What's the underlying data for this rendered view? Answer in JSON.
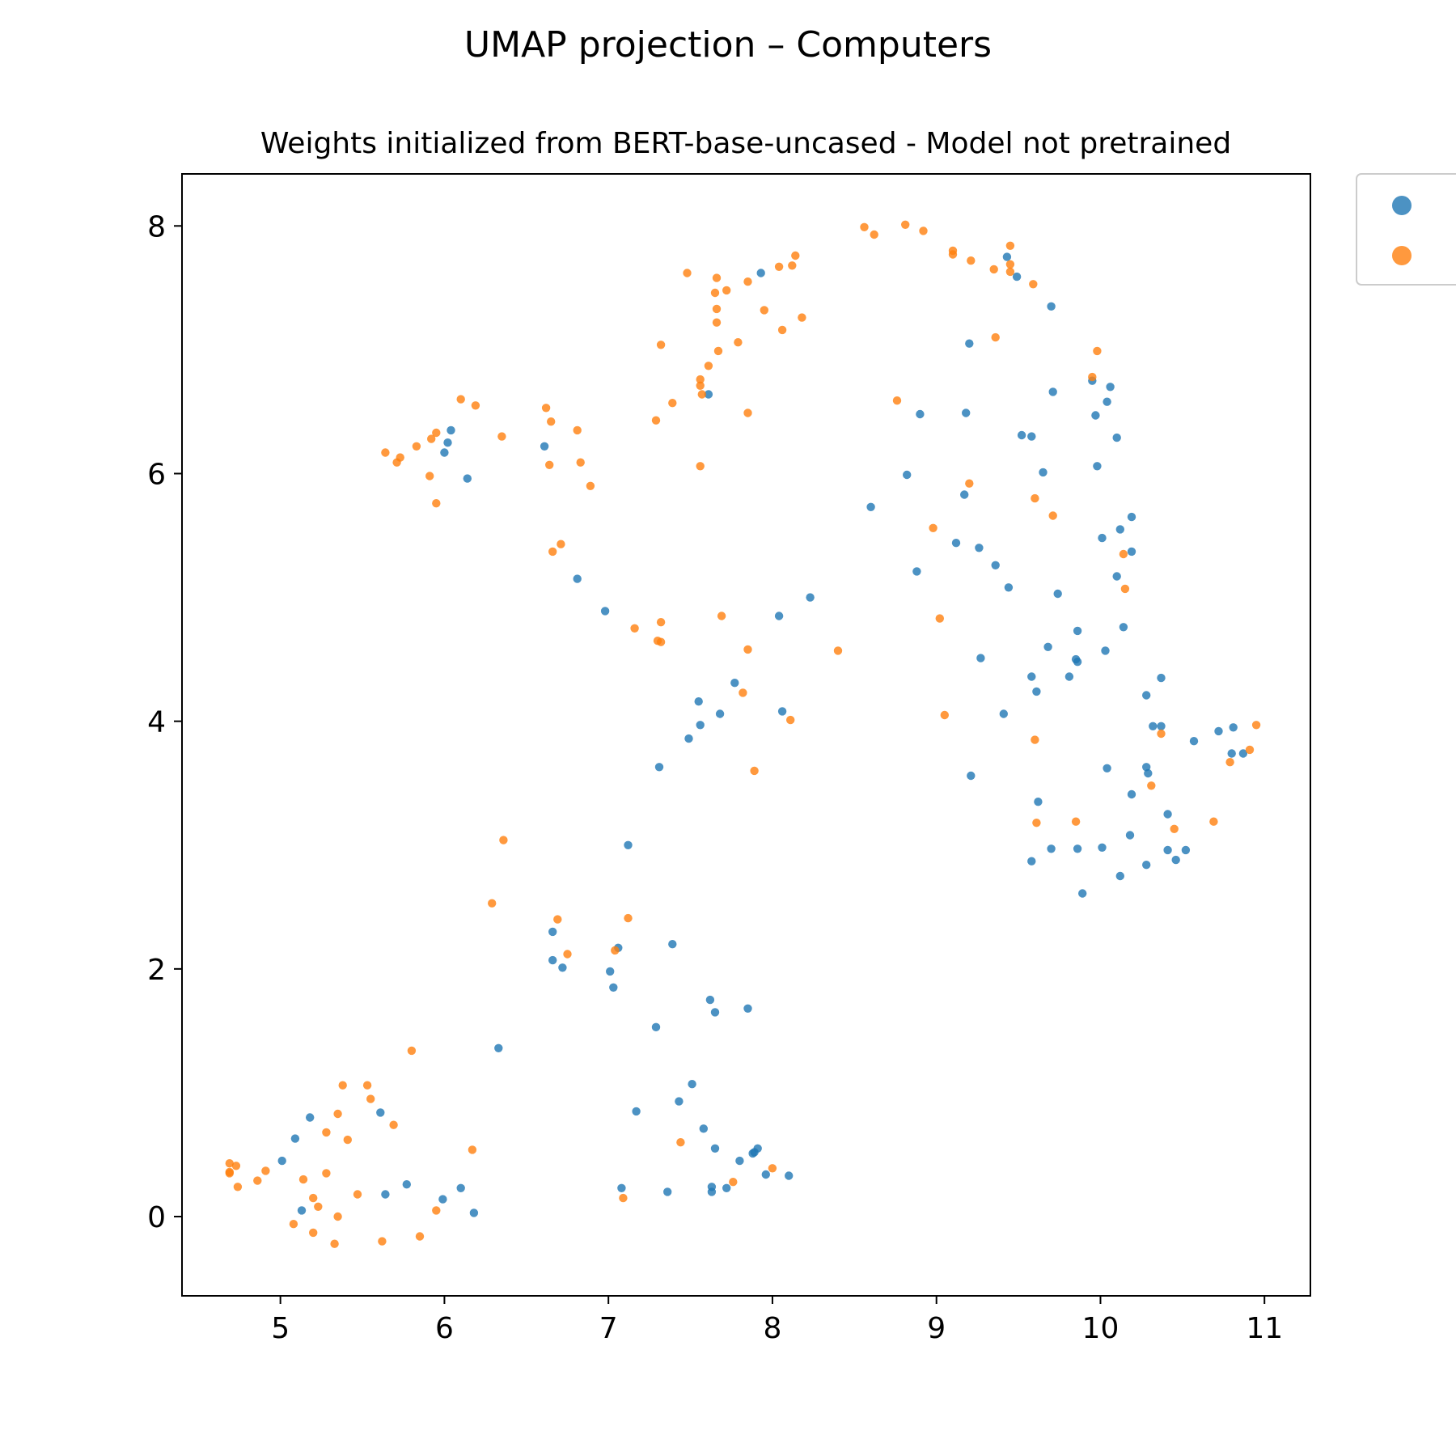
{
  "chart_data": {
    "type": "scatter",
    "title": "UMAP projection – Computers",
    "subtitle": "Weights initialized from BERT-base-uncased - Model not pretrained",
    "xlabel": "",
    "ylabel": "",
    "xlim": [
      4.4,
      11.28
    ],
    "ylim": [
      -0.64,
      8.42
    ],
    "xticks": [
      5,
      6,
      7,
      8,
      9,
      10,
      11
    ],
    "yticks": [
      0,
      2,
      4,
      6,
      8
    ],
    "grid": false,
    "legend_position": "outside-top-right",
    "series": [
      {
        "color": "#1f77b4",
        "points": [
          [
            6.04,
            6.35
          ],
          [
            6.02,
            6.25
          ],
          [
            6.0,
            6.17
          ],
          [
            6.14,
            5.96
          ],
          [
            6.61,
            6.22
          ],
          [
            7.61,
            6.64
          ],
          [
            7.93,
            7.62
          ],
          [
            9.43,
            7.75
          ],
          [
            9.49,
            7.59
          ],
          [
            9.7,
            7.35
          ],
          [
            9.2,
            7.05
          ],
          [
            9.71,
            6.66
          ],
          [
            9.95,
            6.75
          ],
          [
            10.06,
            6.7
          ],
          [
            10.04,
            6.58
          ],
          [
            9.97,
            6.47
          ],
          [
            8.9,
            6.48
          ],
          [
            9.18,
            6.49
          ],
          [
            9.52,
            6.31
          ],
          [
            9.58,
            6.3
          ],
          [
            10.1,
            6.29
          ],
          [
            9.98,
            6.06
          ],
          [
            9.65,
            6.01
          ],
          [
            8.82,
            5.99
          ],
          [
            9.17,
            5.83
          ],
          [
            8.6,
            5.73
          ],
          [
            10.19,
            5.65
          ],
          [
            10.12,
            5.55
          ],
          [
            10.01,
            5.48
          ],
          [
            9.12,
            5.44
          ],
          [
            9.26,
            5.4
          ],
          [
            10.19,
            5.37
          ],
          [
            9.36,
            5.26
          ],
          [
            8.88,
            5.21
          ],
          [
            10.1,
            5.17
          ],
          [
            6.81,
            5.15
          ],
          [
            9.44,
            5.08
          ],
          [
            9.74,
            5.03
          ],
          [
            8.23,
            5.0
          ],
          [
            6.98,
            4.89
          ],
          [
            8.04,
            4.85
          ],
          [
            10.14,
            4.76
          ],
          [
            9.86,
            4.73
          ],
          [
            9.68,
            4.6
          ],
          [
            10.03,
            4.57
          ],
          [
            9.27,
            4.51
          ],
          [
            9.85,
            4.5
          ],
          [
            9.86,
            4.48
          ],
          [
            9.58,
            4.36
          ],
          [
            9.81,
            4.36
          ],
          [
            10.37,
            4.35
          ],
          [
            7.77,
            4.31
          ],
          [
            9.61,
            4.24
          ],
          [
            10.28,
            4.21
          ],
          [
            7.55,
            4.16
          ],
          [
            8.06,
            4.08
          ],
          [
            7.68,
            4.06
          ],
          [
            9.41,
            4.06
          ],
          [
            7.56,
            3.97
          ],
          [
            10.32,
            3.96
          ],
          [
            10.37,
            3.96
          ],
          [
            10.81,
            3.95
          ],
          [
            10.72,
            3.92
          ],
          [
            7.49,
            3.86
          ],
          [
            10.57,
            3.84
          ],
          [
            10.8,
            3.74
          ],
          [
            10.87,
            3.74
          ],
          [
            7.31,
            3.63
          ],
          [
            10.28,
            3.63
          ],
          [
            10.04,
            3.62
          ],
          [
            10.29,
            3.58
          ],
          [
            9.21,
            3.56
          ],
          [
            10.19,
            3.41
          ],
          [
            9.62,
            3.35
          ],
          [
            10.41,
            3.25
          ],
          [
            10.18,
            3.08
          ],
          [
            7.12,
            3.0
          ],
          [
            9.7,
            2.97
          ],
          [
            9.86,
            2.97
          ],
          [
            10.01,
            2.98
          ],
          [
            10.41,
            2.96
          ],
          [
            10.52,
            2.96
          ],
          [
            9.58,
            2.87
          ],
          [
            10.46,
            2.88
          ],
          [
            10.28,
            2.84
          ],
          [
            10.12,
            2.75
          ],
          [
            9.89,
            2.61
          ],
          [
            6.66,
            2.3
          ],
          [
            7.39,
            2.2
          ],
          [
            7.06,
            2.17
          ],
          [
            6.66,
            2.07
          ],
          [
            6.72,
            2.01
          ],
          [
            7.01,
            1.98
          ],
          [
            7.03,
            1.85
          ],
          [
            7.62,
            1.75
          ],
          [
            7.85,
            1.68
          ],
          [
            7.65,
            1.65
          ],
          [
            7.29,
            1.53
          ],
          [
            6.33,
            1.36
          ],
          [
            7.51,
            1.07
          ],
          [
            7.43,
            0.93
          ],
          [
            5.61,
            0.84
          ],
          [
            7.17,
            0.85
          ],
          [
            5.18,
            0.8
          ],
          [
            5.09,
            0.63
          ],
          [
            7.58,
            0.71
          ],
          [
            7.65,
            0.55
          ],
          [
            7.91,
            0.55
          ],
          [
            7.89,
            0.52
          ],
          [
            7.88,
            0.51
          ],
          [
            5.01,
            0.45
          ],
          [
            7.8,
            0.45
          ],
          [
            7.96,
            0.34
          ],
          [
            8.1,
            0.33
          ],
          [
            5.77,
            0.26
          ],
          [
            6.1,
            0.23
          ],
          [
            7.63,
            0.24
          ],
          [
            7.08,
            0.23
          ],
          [
            7.72,
            0.23
          ],
          [
            7.36,
            0.2
          ],
          [
            7.63,
            0.2
          ],
          [
            5.64,
            0.18
          ],
          [
            5.99,
            0.14
          ],
          [
            5.13,
            0.05
          ],
          [
            6.18,
            0.03
          ]
        ]
      },
      {
        "color": "#ff7f0e",
        "points": [
          [
            8.56,
            7.99
          ],
          [
            8.81,
            8.01
          ],
          [
            8.62,
            7.93
          ],
          [
            8.92,
            7.96
          ],
          [
            9.45,
            7.84
          ],
          [
            9.1,
            7.8
          ],
          [
            9.1,
            7.77
          ],
          [
            8.14,
            7.76
          ],
          [
            9.21,
            7.72
          ],
          [
            8.04,
            7.67
          ],
          [
            8.12,
            7.68
          ],
          [
            9.35,
            7.65
          ],
          [
            9.45,
            7.63
          ],
          [
            9.45,
            7.69
          ],
          [
            7.48,
            7.62
          ],
          [
            7.66,
            7.58
          ],
          [
            7.85,
            7.55
          ],
          [
            9.59,
            7.53
          ],
          [
            7.72,
            7.48
          ],
          [
            7.65,
            7.46
          ],
          [
            7.66,
            7.33
          ],
          [
            7.95,
            7.32
          ],
          [
            8.18,
            7.26
          ],
          [
            7.66,
            7.22
          ],
          [
            8.06,
            7.16
          ],
          [
            9.36,
            7.1
          ],
          [
            7.79,
            7.06
          ],
          [
            7.32,
            7.04
          ],
          [
            7.67,
            6.99
          ],
          [
            9.98,
            6.99
          ],
          [
            7.61,
            6.87
          ],
          [
            9.95,
            6.78
          ],
          [
            7.56,
            6.76
          ],
          [
            7.56,
            6.71
          ],
          [
            7.57,
            6.64
          ],
          [
            8.76,
            6.59
          ],
          [
            6.1,
            6.6
          ],
          [
            7.39,
            6.57
          ],
          [
            6.19,
            6.55
          ],
          [
            6.62,
            6.53
          ],
          [
            7.85,
            6.49
          ],
          [
            7.29,
            6.43
          ],
          [
            6.65,
            6.42
          ],
          [
            6.81,
            6.35
          ],
          [
            5.95,
            6.33
          ],
          [
            6.35,
            6.3
          ],
          [
            5.92,
            6.28
          ],
          [
            5.83,
            6.22
          ],
          [
            5.64,
            6.17
          ],
          [
            5.73,
            6.13
          ],
          [
            5.71,
            6.09
          ],
          [
            6.83,
            6.09
          ],
          [
            6.64,
            6.07
          ],
          [
            7.56,
            6.06
          ],
          [
            5.91,
            5.98
          ],
          [
            9.2,
            5.92
          ],
          [
            6.89,
            5.9
          ],
          [
            9.6,
            5.8
          ],
          [
            5.95,
            5.76
          ],
          [
            9.71,
            5.66
          ],
          [
            8.98,
            5.56
          ],
          [
            6.71,
            5.43
          ],
          [
            6.66,
            5.37
          ],
          [
            10.14,
            5.35
          ],
          [
            10.15,
            5.07
          ],
          [
            7.69,
            4.85
          ],
          [
            9.02,
            4.83
          ],
          [
            7.32,
            4.8
          ],
          [
            7.16,
            4.75
          ],
          [
            7.3,
            4.65
          ],
          [
            7.32,
            4.64
          ],
          [
            7.85,
            4.58
          ],
          [
            8.4,
            4.57
          ],
          [
            7.82,
            4.23
          ],
          [
            9.05,
            4.05
          ],
          [
            8.11,
            4.01
          ],
          [
            10.95,
            3.97
          ],
          [
            10.37,
            3.9
          ],
          [
            9.6,
            3.85
          ],
          [
            10.91,
            3.77
          ],
          [
            10.79,
            3.67
          ],
          [
            7.89,
            3.6
          ],
          [
            10.31,
            3.48
          ],
          [
            10.69,
            3.19
          ],
          [
            9.85,
            3.19
          ],
          [
            9.61,
            3.18
          ],
          [
            10.45,
            3.13
          ],
          [
            6.36,
            3.04
          ],
          [
            6.29,
            2.53
          ],
          [
            7.12,
            2.41
          ],
          [
            6.69,
            2.4
          ],
          [
            7.04,
            2.15
          ],
          [
            6.75,
            2.12
          ],
          [
            5.8,
            1.34
          ],
          [
            5.38,
            1.06
          ],
          [
            5.53,
            1.06
          ],
          [
            5.55,
            0.95
          ],
          [
            5.35,
            0.83
          ],
          [
            5.69,
            0.74
          ],
          [
            5.28,
            0.68
          ],
          [
            5.41,
            0.62
          ],
          [
            7.44,
            0.6
          ],
          [
            6.17,
            0.54
          ],
          [
            4.69,
            0.43
          ],
          [
            4.73,
            0.41
          ],
          [
            8.0,
            0.39
          ],
          [
            4.91,
            0.37
          ],
          [
            4.69,
            0.36
          ],
          [
            4.69,
            0.35
          ],
          [
            5.28,
            0.35
          ],
          [
            5.14,
            0.3
          ],
          [
            4.86,
            0.29
          ],
          [
            7.76,
            0.28
          ],
          [
            4.74,
            0.24
          ],
          [
            5.47,
            0.18
          ],
          [
            5.2,
            0.15
          ],
          [
            7.09,
            0.15
          ],
          [
            5.23,
            0.08
          ],
          [
            5.95,
            0.05
          ],
          [
            5.35,
            0.0
          ],
          [
            5.08,
            -0.06
          ],
          [
            5.2,
            -0.13
          ],
          [
            5.85,
            -0.16
          ],
          [
            5.62,
            -0.2
          ],
          [
            5.33,
            -0.22
          ]
        ]
      }
    ]
  }
}
